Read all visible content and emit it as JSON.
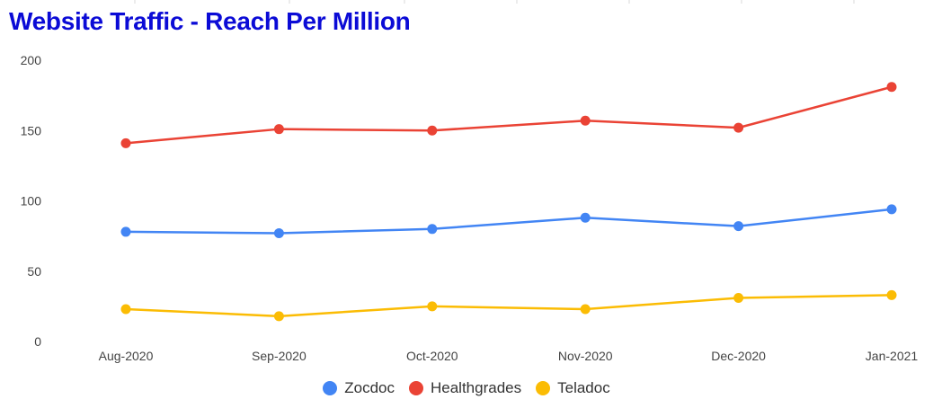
{
  "chart_data": {
    "type": "line",
    "title": "Website Traffic - Reach Per Million",
    "xlabel": "",
    "ylabel": "",
    "ylim": [
      0,
      200
    ],
    "yticks": [
      0,
      50,
      100,
      150,
      200
    ],
    "grid": false,
    "legend_position": "bottom",
    "categories": [
      "Aug-2020",
      "Sep-2020",
      "Oct-2020",
      "Nov-2020",
      "Dec-2020",
      "Jan-2021"
    ],
    "series": [
      {
        "name": "Zocdoc",
        "color": "#4285f4",
        "values": [
          78,
          77,
          80,
          88,
          82,
          94
        ]
      },
      {
        "name": "Healthgrades",
        "color": "#ea4335",
        "values": [
          141,
          151,
          150,
          157,
          152,
          181
        ]
      },
      {
        "name": "Teladoc",
        "color": "#fbbc04",
        "values": [
          23,
          18,
          25,
          23,
          31,
          33
        ]
      }
    ]
  }
}
